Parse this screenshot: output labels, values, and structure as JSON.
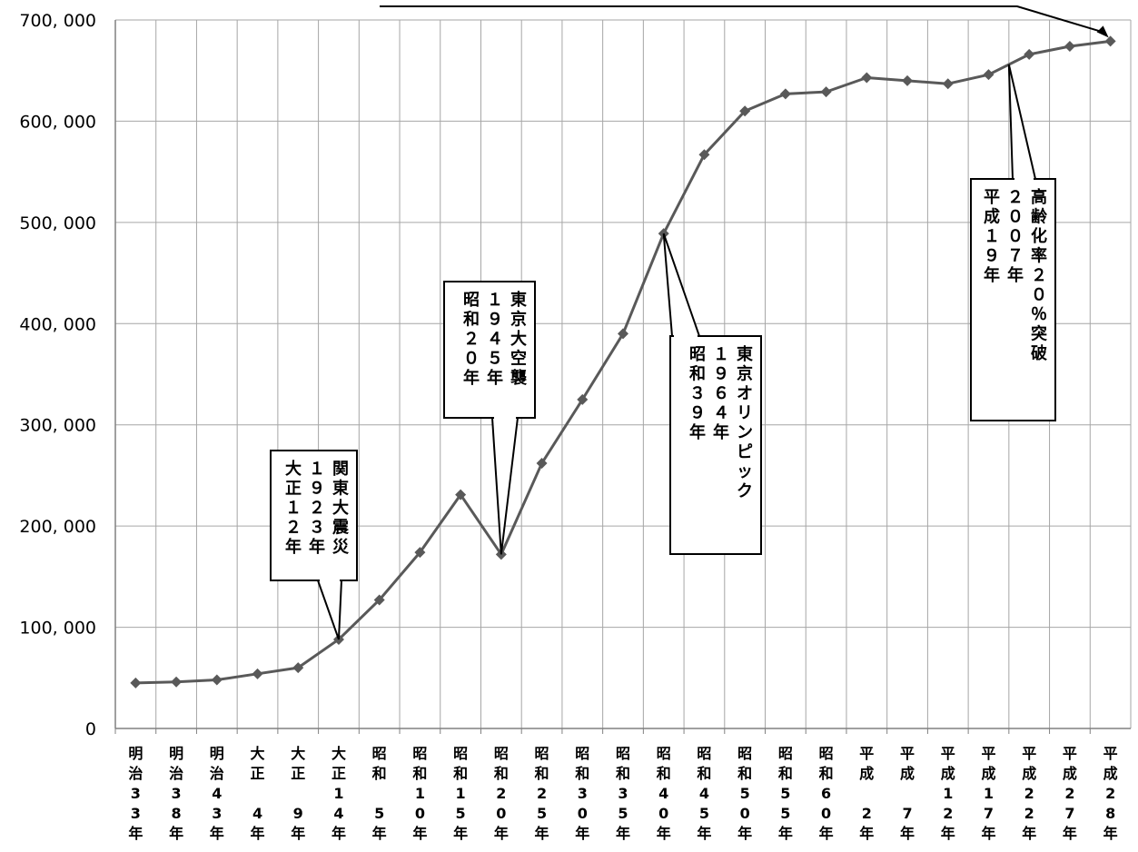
{
  "chart_data": {
    "type": "line",
    "title": "",
    "xlabel": "",
    "ylabel": "",
    "ylim": [
      0,
      700000
    ],
    "yticks": [
      0,
      100000,
      200000,
      300000,
      400000,
      500000,
      600000,
      700000
    ],
    "ytick_labels": [
      "0",
      "100, 000",
      "200, 000",
      "300, 000",
      "400, 000",
      "500, 000",
      "600, 000",
      "700, 000"
    ],
    "grid": true,
    "legend": "none",
    "categories": [
      "明治33年",
      "明治38年",
      "明治43年",
      "大正4年",
      "大正9年",
      "大正14年",
      "昭和5年",
      "昭和10年",
      "昭和15年",
      "昭和20年",
      "昭和25年",
      "昭和30年",
      "昭和35年",
      "昭和40年",
      "昭和45年",
      "昭和50年",
      "昭和55年",
      "昭和60年",
      "平成2年",
      "平成7年",
      "平成12年",
      "平成17年",
      "平成22年",
      "平成27年",
      "平成28年"
    ],
    "category_columns": [
      [
        "明",
        "治",
        "3",
        "3",
        "年"
      ],
      [
        "明",
        "治",
        "3",
        "8",
        "年"
      ],
      [
        "明",
        "治",
        "4",
        "3",
        "年"
      ],
      [
        "大",
        "正",
        "",
        "4",
        "年"
      ],
      [
        "大",
        "正",
        "",
        "9",
        "年"
      ],
      [
        "大",
        "正",
        "1",
        "4",
        "年"
      ],
      [
        "昭",
        "和",
        "",
        "5",
        "年"
      ],
      [
        "昭",
        "和",
        "1",
        "0",
        "年"
      ],
      [
        "昭",
        "和",
        "1",
        "5",
        "年"
      ],
      [
        "昭",
        "和",
        "2",
        "0",
        "年"
      ],
      [
        "昭",
        "和",
        "2",
        "5",
        "年"
      ],
      [
        "昭",
        "和",
        "3",
        "0",
        "年"
      ],
      [
        "昭",
        "和",
        "3",
        "5",
        "年"
      ],
      [
        "昭",
        "和",
        "4",
        "0",
        "年"
      ],
      [
        "昭",
        "和",
        "4",
        "5",
        "年"
      ],
      [
        "昭",
        "和",
        "5",
        "0",
        "年"
      ],
      [
        "昭",
        "和",
        "5",
        "5",
        "年"
      ],
      [
        "昭",
        "和",
        "6",
        "0",
        "年"
      ],
      [
        "平",
        "成",
        "",
        "2",
        "年"
      ],
      [
        "平",
        "成",
        "",
        "7",
        "年"
      ],
      [
        "平",
        "成",
        "1",
        "2",
        "年"
      ],
      [
        "平",
        "成",
        "1",
        "7",
        "年"
      ],
      [
        "平",
        "成",
        "2",
        "2",
        "年"
      ],
      [
        "平",
        "成",
        "2",
        "7",
        "年"
      ],
      [
        "平",
        "成",
        "2",
        "8",
        "年"
      ]
    ],
    "series": [
      {
        "values": [
          45000,
          46000,
          48000,
          54000,
          60000,
          88000,
          127000,
          174000,
          231000,
          172000,
          262000,
          325000,
          390000,
          489000,
          567000,
          610000,
          627000,
          629000,
          643000,
          640000,
          637000,
          646000,
          666000,
          674000,
          679000
        ],
        "color": "#595959",
        "marker": "diamond"
      }
    ],
    "annotations": [
      {
        "columns": [
          "関東大震災",
          "１９２３年",
          "大正１２年"
        ],
        "target_index": 5
      },
      {
        "columns": [
          "東京大空襲",
          "１９４５年",
          "昭和２０年"
        ],
        "target_index": 9
      },
      {
        "columns": [
          "東京オリンピック",
          "１９６４年",
          "昭和３９年"
        ],
        "target_index": 13
      },
      {
        "columns": [
          "高齢化率２０％突破",
          "２００７年",
          "平成１９年"
        ],
        "target_index": 21.5
      }
    ],
    "colors": {
      "line": "#595959",
      "grid": "#a6a6a6",
      "axis": "#808080"
    }
  }
}
